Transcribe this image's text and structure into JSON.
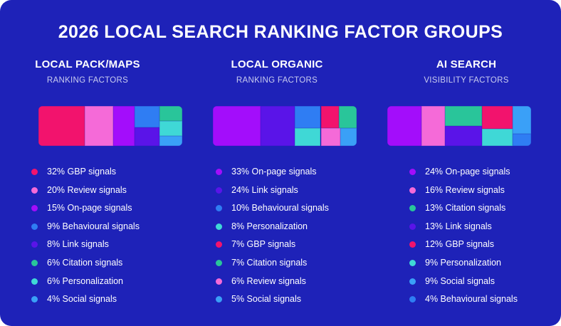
{
  "title": "2026 LOCAL SEARCH RANKING FACTOR GROUPS",
  "colors": {
    "background": "#1e22b8",
    "GBP signals": "#f2136d",
    "Review signals": "#f56ad8",
    "On-page signals": "#a30dfb",
    "Behavioural signals": "#2f7df3",
    "Link signals": "#5a14e8",
    "Citation signals": "#29c59a",
    "Personalization": "#3fd8d6",
    "Social signals": "#3aa0f7"
  },
  "chart_data": [
    {
      "type": "treemap",
      "title": "LOCAL PACK/MAPS",
      "subtitle": "RANKING FACTORS",
      "series": [
        {
          "label": "32% GBP signals",
          "name": "GBP signals",
          "value": 32
        },
        {
          "label": "20% Review signals",
          "name": "Review signals",
          "value": 20
        },
        {
          "label": "15% On-page signals",
          "name": "On-page signals",
          "value": 15
        },
        {
          "label": "9% Behavioural signals",
          "name": "Behavioural signals",
          "value": 9
        },
        {
          "label": "8% Link signals",
          "name": "Link signals",
          "value": 8
        },
        {
          "label": "6% Citation signals",
          "name": "Citation signals",
          "value": 6
        },
        {
          "label": "6% Personalization",
          "name": "Personalization",
          "value": 6
        },
        {
          "label": "4% Social signals",
          "name": "Social signals",
          "value": 4
        }
      ]
    },
    {
      "type": "treemap",
      "title": "LOCAL ORGANIC",
      "subtitle": "RANKING FACTORS",
      "series": [
        {
          "label": "33% On-page signals",
          "name": "On-page signals",
          "value": 33
        },
        {
          "label": "24% Link signals",
          "name": "Link signals",
          "value": 24
        },
        {
          "label": "10% Behavioural signals",
          "name": "Behavioural signals",
          "value": 10
        },
        {
          "label": "8% Personalization",
          "name": "Personalization",
          "value": 8
        },
        {
          "label": "7% GBP signals",
          "name": "GBP signals",
          "value": 7
        },
        {
          "label": "7% Citation signals",
          "name": "Citation signals",
          "value": 7
        },
        {
          "label": "6% Review signals",
          "name": "Review signals",
          "value": 6
        },
        {
          "label": "5% Social signals",
          "name": "Social signals",
          "value": 5
        }
      ]
    },
    {
      "type": "treemap",
      "title": "AI SEARCH",
      "subtitle": "VISIBILITY FACTORS",
      "series": [
        {
          "label": "24% On-page signals",
          "name": "On-page signals",
          "value": 24
        },
        {
          "label": "16% Review signals",
          "name": "Review signals",
          "value": 16
        },
        {
          "label": "13% Citation signals",
          "name": "Citation signals",
          "value": 13
        },
        {
          "label": "13% Link signals",
          "name": "Link signals",
          "value": 13
        },
        {
          "label": "12% GBP signals",
          "name": "GBP signals",
          "value": 12
        },
        {
          "label": "9% Personalization",
          "name": "Personalization",
          "value": 9
        },
        {
          "label": "9% Social signals",
          "name": "Social signals",
          "value": 9
        },
        {
          "label": "4% Behavioural signals",
          "name": "Behavioural signals",
          "value": 4
        }
      ]
    }
  ]
}
